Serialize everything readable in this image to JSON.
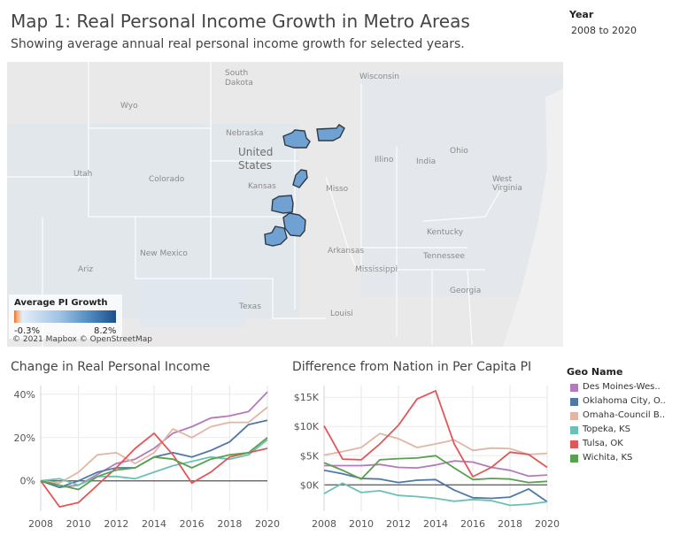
{
  "title": "Map 1: Real Personal Income Growth in Metro Areas",
  "subtitle": "Showing average annual real personal income growth for selected years.",
  "year_filter": {
    "label": "Year",
    "value": "2008 to 2020"
  },
  "map": {
    "labels": {
      "south_dakota_1": "South",
      "south_dakota_2": "Dakota",
      "wisconsin": "Wisconsin",
      "wyoming": "Wyo",
      "nebraska": "Nebraska",
      "united_1": "United",
      "united_2": "States",
      "utah": "Utah",
      "colorado": "Colorado",
      "kansas": "Kansas",
      "missouri": "Misso",
      "illinois": "Illino",
      "indiana": "India",
      "ohio": "Ohio",
      "west_virginia_1": "West",
      "west_virginia_2": "Virginia",
      "kentucky": "Kentucky",
      "tennessee": "Tennessee",
      "arkansas": "Arkansas",
      "mississippi": "Mississippi",
      "georgia": "Georgia",
      "new_mexico": "New Mexico",
      "texas": "Texas",
      "louisiana": "Louisi",
      "arizona": "Ariz"
    },
    "legend": {
      "title": "Average PI Growth",
      "min": "-0.3%",
      "max": "8.2%"
    },
    "copyright": "© 2021 Mapbox © OpenStreetMap",
    "colors": {
      "highlight": "#6fa2d3",
      "outline": "#2f3a46",
      "background": "#ececec"
    }
  },
  "chart_left": {
    "title": "Change in Real Personal Income",
    "yticks": [
      "40%",
      "20%",
      "0%"
    ],
    "xticks": [
      "2008",
      "2010",
      "2012",
      "2014",
      "2016",
      "2018",
      "2020"
    ]
  },
  "chart_right": {
    "title": "Difference from Nation in Per Capita PI",
    "yticks": [
      "$15K",
      "$10K",
      "$5K",
      "$0K"
    ],
    "xticks": [
      "2008",
      "2010",
      "2012",
      "2014",
      "2016",
      "2018",
      "2020"
    ]
  },
  "legend": {
    "title": "Geo Name",
    "items": [
      {
        "label": "Des Moines-Wes..",
        "color": "#b27cba"
      },
      {
        "label": "Oklahoma City, O..",
        "color": "#4e79a7"
      },
      {
        "label": "Omaha-Council B..",
        "color": "#e2b6a4"
      },
      {
        "label": "Topeka, KS",
        "color": "#6cc1b6"
      },
      {
        "label": "Tulsa, OK",
        "color": "#e15759"
      },
      {
        "label": "Wichita, KS",
        "color": "#59a14f"
      }
    ]
  },
  "chart_data": [
    {
      "type": "line",
      "title": "Change in Real Personal Income",
      "x": [
        2008,
        2009,
        2010,
        2011,
        2012,
        2013,
        2014,
        2015,
        2016,
        2017,
        2018,
        2019,
        2020
      ],
      "ylim": [
        -0.14,
        0.44
      ],
      "yticks_values": [
        0,
        0.2,
        0.4
      ],
      "series": [
        {
          "name": "Des Moines-Wes..",
          "color": "#b27cba",
          "values": [
            0,
            -0.03,
            -0.02,
            0.03,
            0.08,
            0.1,
            0.15,
            0.22,
            0.25,
            0.29,
            0.3,
            0.32,
            0.41
          ]
        },
        {
          "name": "Oklahoma City, O..",
          "color": "#4e79a7",
          "values": [
            0,
            -0.03,
            0,
            0.04,
            0.06,
            0.06,
            0.11,
            0.13,
            0.11,
            0.14,
            0.18,
            0.26,
            0.28
          ]
        },
        {
          "name": "Omaha-Council B..",
          "color": "#e2b6a4",
          "values": [
            0,
            -0.01,
            0.04,
            0.12,
            0.13,
            0.08,
            0.13,
            0.24,
            0.2,
            0.25,
            0.27,
            0.27,
            0.34
          ]
        },
        {
          "name": "Topeka, KS",
          "color": "#6cc1b6",
          "values": [
            0,
            0.01,
            -0.02,
            0.02,
            0.02,
            0.01,
            0.04,
            0.07,
            0.09,
            0.11,
            0.1,
            0.12,
            0.19
          ]
        },
        {
          "name": "Tulsa, OK",
          "color": "#e15759",
          "values": [
            0,
            -0.12,
            -0.1,
            -0.02,
            0.06,
            0.15,
            0.22,
            0.12,
            -0.01,
            0.04,
            0.11,
            0.13,
            0.15
          ]
        },
        {
          "name": "Wichita, KS",
          "color": "#59a14f",
          "values": [
            0,
            -0.02,
            -0.04,
            0.02,
            0.05,
            0.06,
            0.11,
            0.1,
            0.06,
            0.1,
            0.12,
            0.13,
            0.2
          ]
        }
      ]
    },
    {
      "type": "line",
      "title": "Difference from Nation in Per Capita PI",
      "x": [
        2008,
        2009,
        2010,
        2011,
        2012,
        2013,
        2014,
        2015,
        2016,
        2017,
        2018,
        2019,
        2020
      ],
      "ylim": [
        -4500,
        17000
      ],
      "yticks_values": [
        0,
        5000,
        10000,
        15000
      ],
      "series": [
        {
          "name": "Des Moines-Wes..",
          "color": "#b27cba",
          "values": [
            3300,
            3300,
            3300,
            3500,
            3000,
            2900,
            3400,
            4100,
            3900,
            3000,
            2500,
            1500,
            1700
          ]
        },
        {
          "name": "Oklahoma City, O..",
          "color": "#4e79a7",
          "values": [
            2500,
            1900,
            1100,
            1000,
            400,
            800,
            900,
            -900,
            -2200,
            -2300,
            -2100,
            -700,
            -2900
          ]
        },
        {
          "name": "Omaha-Council B..",
          "color": "#e2b6a4",
          "values": [
            5100,
            5700,
            6400,
            8800,
            7900,
            6400,
            7000,
            7700,
            5900,
            6300,
            6200,
            5200,
            5400
          ]
        },
        {
          "name": "Topeka, KS",
          "color": "#6cc1b6",
          "values": [
            -1500,
            300,
            -1300,
            -1000,
            -1800,
            -2000,
            -2300,
            -2800,
            -2500,
            -2700,
            -3500,
            -3300,
            -2900
          ]
        },
        {
          "name": "Tulsa, OK",
          "color": "#e15759",
          "values": [
            10100,
            4400,
            4300,
            7000,
            10200,
            14700,
            16100,
            7000,
            1400,
            3000,
            5600,
            5200,
            3000
          ]
        },
        {
          "name": "Wichita, KS",
          "color": "#59a14f",
          "values": [
            3800,
            2500,
            1000,
            4300,
            4500,
            4600,
            5000,
            2900,
            900,
            1100,
            1000,
            400,
            600
          ]
        }
      ]
    }
  ]
}
